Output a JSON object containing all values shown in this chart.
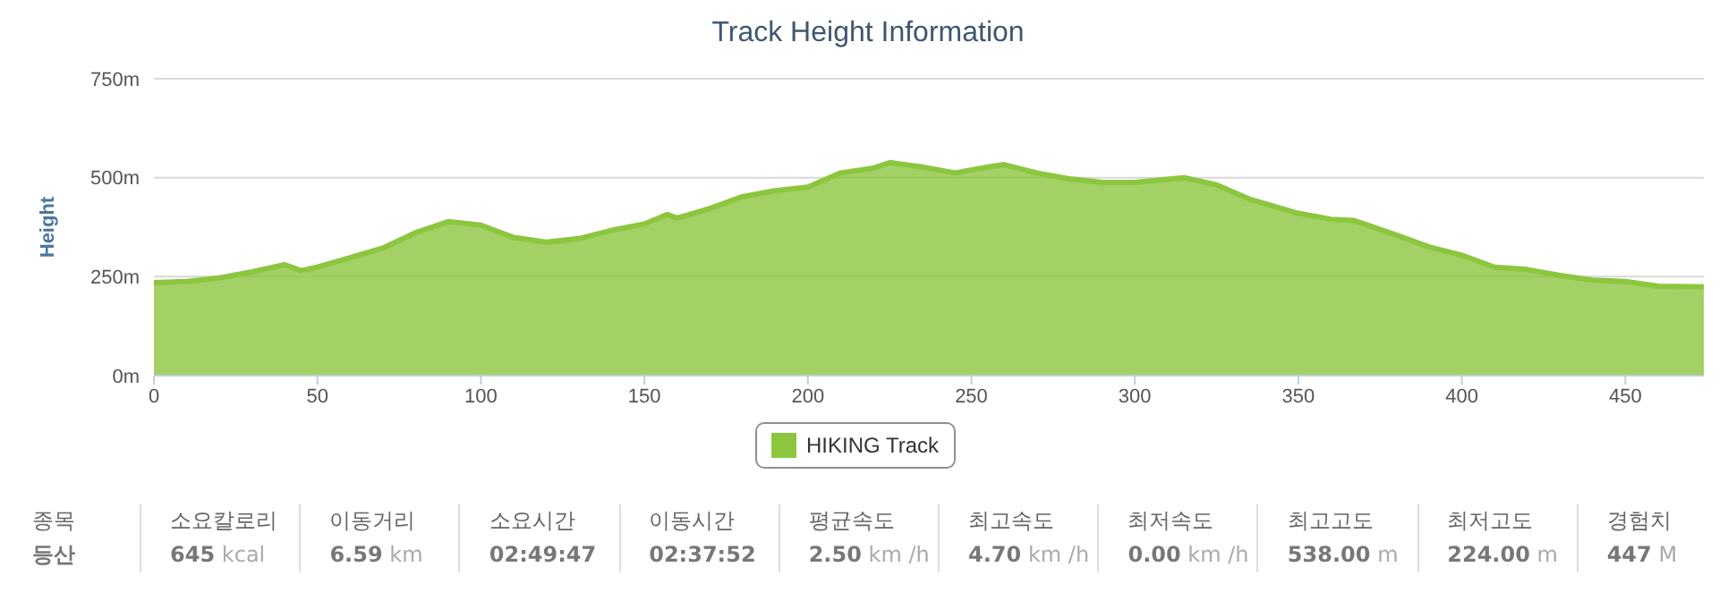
{
  "chart_data": {
    "type": "area",
    "title": "Track Height Information",
    "ylabel": "Height",
    "x": [
      0,
      10,
      20,
      30,
      40,
      45,
      50,
      60,
      70,
      80,
      90,
      100,
      110,
      120,
      130,
      140,
      150,
      157,
      160,
      170,
      180,
      190,
      200,
      210,
      220,
      225,
      235,
      245,
      255,
      260,
      270,
      280,
      290,
      300,
      315,
      325,
      335,
      350,
      360,
      367,
      380,
      390,
      400,
      410,
      420,
      430,
      440,
      450,
      460,
      474
    ],
    "series": [
      {
        "name": "HIKING Track",
        "color": "#8cc63f",
        "values": [
          235,
          238,
          247,
          262,
          280,
          265,
          274,
          298,
          322,
          361,
          389,
          380,
          349,
          337,
          346,
          367,
          383,
          407,
          398,
          422,
          452,
          467,
          476,
          512,
          524,
          538,
          527,
          512,
          527,
          533,
          512,
          497,
          488,
          488,
          500,
          482,
          446,
          410,
          395,
          392,
          355,
          325,
          304,
          274,
          268,
          253,
          241,
          238,
          226,
          224
        ]
      }
    ],
    "xlim": [
      0,
      474
    ],
    "xticks": [
      0,
      50,
      100,
      150,
      200,
      250,
      300,
      350,
      400,
      450
    ],
    "ylim": [
      0,
      750
    ],
    "yticks": [
      {
        "value": 0,
        "label": "0m"
      },
      {
        "value": 250,
        "label": "250m"
      },
      {
        "value": 500,
        "label": "500m"
      },
      {
        "value": 750,
        "label": "750m"
      }
    ],
    "grid": "y",
    "legend": "bottom",
    "marker": "none",
    "annotations": [
      "종목",
      "등산",
      "소요칼로리",
      "645 kcal",
      "이동거리",
      "6.59 km",
      "소요시간",
      "02:49:47",
      "이동시간",
      "02:37:52",
      "평균속도",
      "2.50 km /h",
      "최고속도",
      "4.70 km /h",
      "최저속도",
      "0.00 km /h",
      "최고고도",
      "538.00 m",
      "최저고도",
      "224.00 m",
      "경험치",
      "447 M"
    ]
  }
}
